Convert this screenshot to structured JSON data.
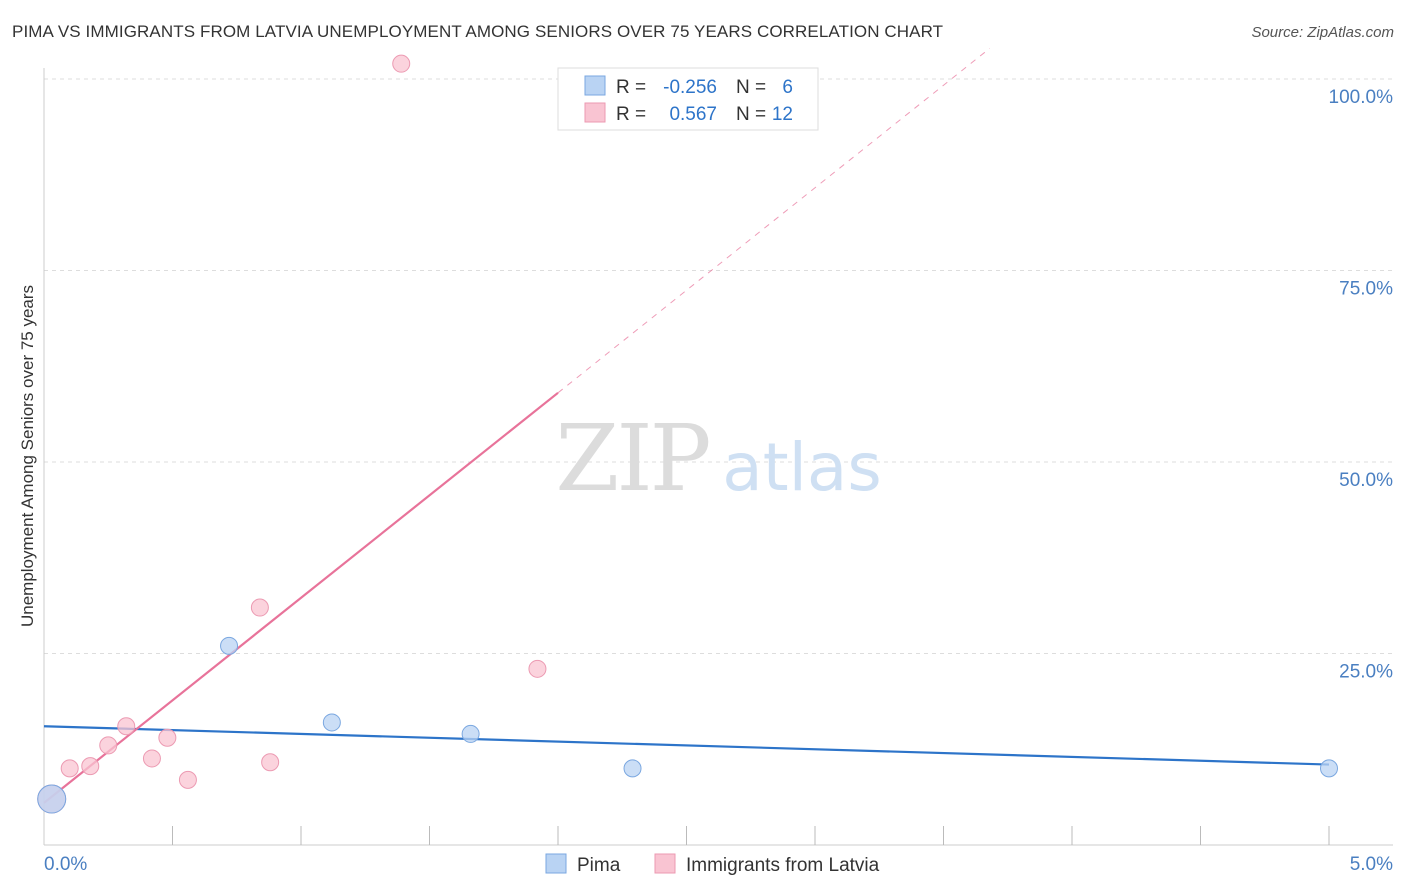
{
  "header": {
    "title": "PIMA VS IMMIGRANTS FROM LATVIA UNEMPLOYMENT AMONG SENIORS OVER 75 YEARS CORRELATION CHART",
    "source": "Source: ZipAtlas.com"
  },
  "watermark": {
    "zip": "ZIP",
    "atlas": "atlas"
  },
  "colors": {
    "pima_fill": "#b9d3f3",
    "pima_stroke": "#7aa7e0",
    "pima_line": "#2d74c9",
    "latvia_fill": "#f9c4d2",
    "latvia_stroke": "#ec9ab2",
    "latvia_line": "#e8739a",
    "axis_text": "#4a7fc1",
    "grid": "#dddddd"
  },
  "legend_top": {
    "rows": [
      {
        "r_label": "R =",
        "r_value": "-0.256",
        "n_label": "N =",
        "n_value": "6"
      },
      {
        "r_label": "R =",
        "r_value": "0.567",
        "n_label": "N =",
        "n_value": "12"
      }
    ]
  },
  "chart_data": {
    "type": "scatter",
    "title": "PIMA VS IMMIGRANTS FROM LATVIA UNEMPLOYMENT AMONG SENIORS OVER 75 YEARS CORRELATION CHART",
    "xlabel": "",
    "ylabel": "Unemployment Among Seniors over 75 years",
    "xlim": [
      0,
      5
    ],
    "ylim": [
      0,
      100
    ],
    "x_ticks": [
      {
        "value": 0,
        "label": "0.0%"
      },
      {
        "value": 5,
        "label": "5.0%"
      }
    ],
    "y_ticks": [
      {
        "value": 25,
        "label": "25.0%"
      },
      {
        "value": 50,
        "label": "50.0%"
      },
      {
        "value": 75,
        "label": "75.0%"
      },
      {
        "value": 100,
        "label": "100.0%"
      }
    ],
    "series": [
      {
        "name": "Pima",
        "points": [
          [
            0.03,
            6.0
          ],
          [
            0.72,
            26.0
          ],
          [
            1.12,
            16.0
          ],
          [
            1.66,
            14.5
          ],
          [
            2.29,
            10.0
          ],
          [
            5.0,
            10.0
          ]
        ],
        "sizes": [
          "large",
          "normal",
          "normal",
          "normal",
          "normal",
          "normal"
        ],
        "trend": {
          "x0": 0,
          "y0": 15.5,
          "x1": 5,
          "y1": 10.5,
          "solid_to": 5
        }
      },
      {
        "name": "Immigrants from Latvia",
        "points": [
          [
            0.03,
            6.0
          ],
          [
            0.1,
            10.0
          ],
          [
            0.18,
            10.3
          ],
          [
            0.25,
            13.0
          ],
          [
            0.32,
            15.5
          ],
          [
            0.42,
            11.3
          ],
          [
            0.48,
            14.0
          ],
          [
            0.56,
            8.5
          ],
          [
            0.84,
            31.0
          ],
          [
            0.88,
            10.8
          ],
          [
            1.39,
            102.0
          ],
          [
            1.92,
            23.0
          ]
        ],
        "sizes": [
          "large",
          "normal",
          "normal",
          "normal",
          "normal",
          "normal",
          "normal",
          "normal",
          "normal",
          "normal",
          "normal",
          "normal"
        ],
        "trend": {
          "x0": 0,
          "y0": 5.5,
          "x1": 3.68,
          "y1": 104.0,
          "solid_to": 2.0
        }
      }
    ],
    "legend": {
      "position": "bottom-center",
      "entries": [
        "Pima",
        "Immigrants from Latvia"
      ]
    }
  }
}
